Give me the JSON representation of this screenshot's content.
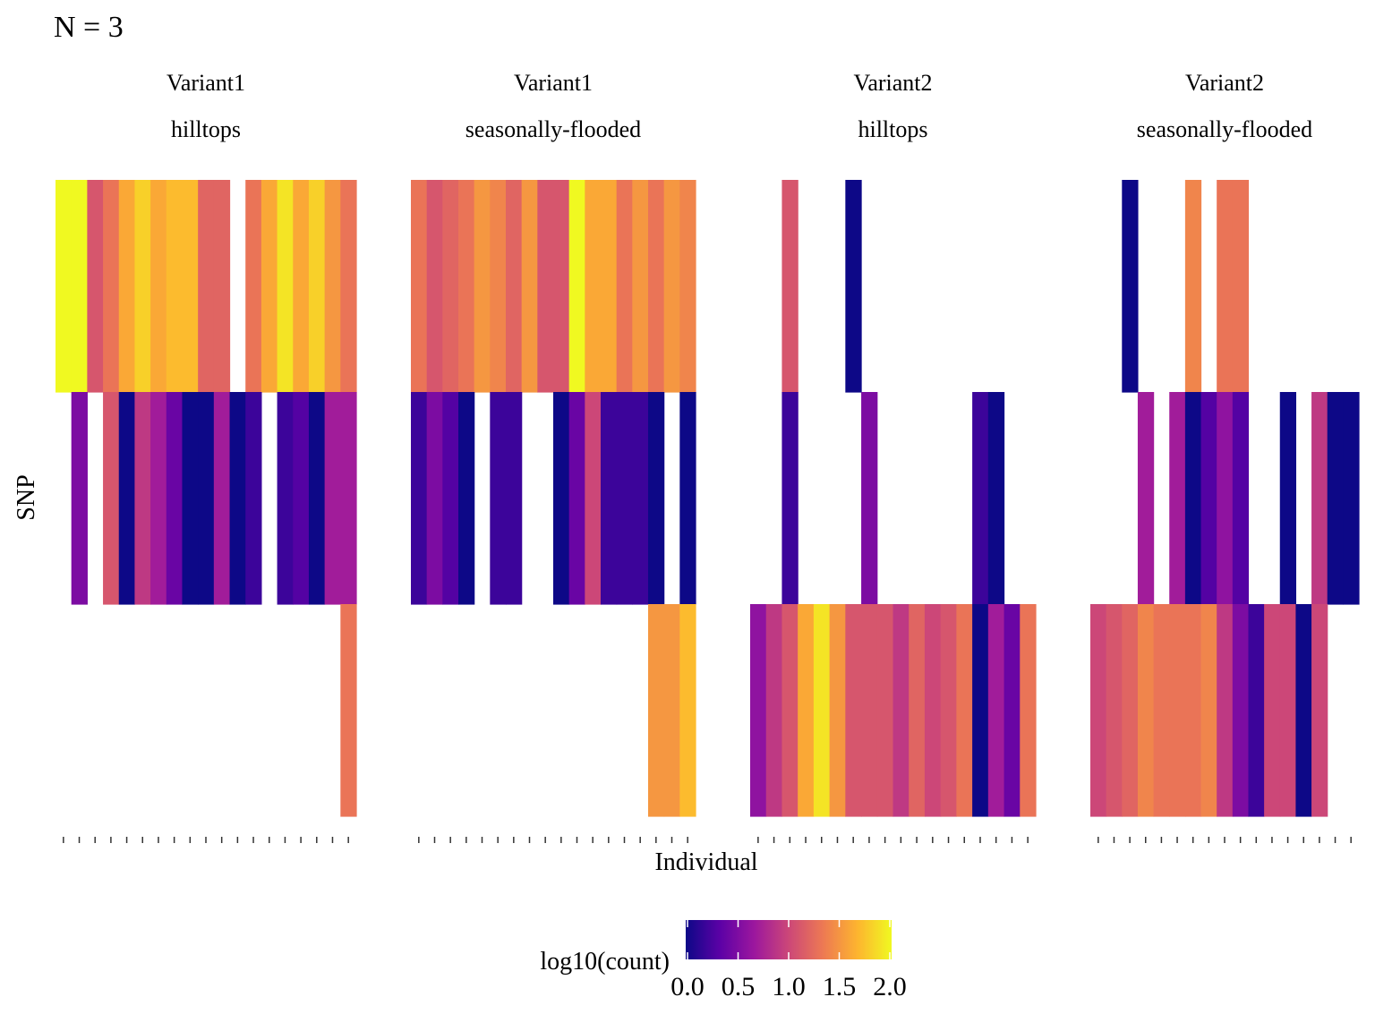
{
  "chart_data": {
    "type": "heatmap",
    "title": "N = 3",
    "xlabel": "Individual",
    "ylabel": "SNP",
    "legend": {
      "title": "log10(count)",
      "ticks": [
        "0.0",
        "0.5",
        "1.0",
        "1.5",
        "2.0"
      ],
      "range": [
        0,
        2
      ],
      "position": "bottom",
      "palette": [
        "#0d0887",
        "#5c01a6",
        "#9c179e",
        "#cc4778",
        "#ed7953",
        "#fdb42f",
        "#f0f921"
      ]
    },
    "panels": [
      {
        "strip": [
          "Variant1",
          "hilltops"
        ],
        "columns": 19,
        "rows": [
          [
            2.0,
            2.0,
            1.1,
            1.3,
            1.6,
            1.8,
            1.6,
            1.7,
            1.7,
            1.2,
            1.2,
            null,
            1.3,
            1.6,
            1.9,
            1.6,
            1.8,
            1.5,
            1.3
          ],
          [
            null,
            0.5,
            null,
            1.1,
            0.0,
            0.9,
            0.7,
            0.4,
            0.0,
            0.0,
            0.7,
            0.0,
            0.2,
            null,
            0.2,
            0.3,
            0.0,
            0.7,
            0.7
          ],
          [
            null,
            null,
            null,
            null,
            null,
            null,
            null,
            null,
            null,
            null,
            null,
            null,
            null,
            null,
            null,
            null,
            null,
            null,
            1.3
          ]
        ]
      },
      {
        "strip": [
          "Variant1",
          "seasonally-flooded"
        ],
        "columns": 18,
        "rows": [
          [
            1.3,
            1.1,
            1.2,
            1.3,
            1.5,
            1.4,
            1.2,
            1.5,
            1.1,
            1.1,
            2.0,
            1.6,
            1.6,
            1.3,
            1.5,
            1.3,
            1.5,
            1.4
          ],
          [
            0.2,
            0.5,
            0.3,
            0.0,
            null,
            0.2,
            0.2,
            null,
            null,
            0.0,
            0.4,
            1.0,
            0.2,
            0.2,
            0.2,
            0.0,
            null,
            0.0
          ],
          [
            null,
            null,
            null,
            null,
            null,
            null,
            null,
            null,
            null,
            null,
            null,
            null,
            null,
            null,
            null,
            1.5,
            1.5,
            1.7
          ]
        ]
      },
      {
        "strip": [
          "Variant2",
          "hilltops"
        ],
        "columns": 18,
        "rows": [
          [
            null,
            null,
            1.1,
            null,
            null,
            null,
            0.0,
            null,
            null,
            null,
            null,
            null,
            null,
            null,
            null,
            null,
            null,
            null
          ],
          [
            null,
            null,
            0.2,
            null,
            null,
            null,
            null,
            0.5,
            null,
            null,
            null,
            null,
            null,
            null,
            0.2,
            0.0,
            null,
            null
          ],
          [
            0.6,
            0.9,
            1.1,
            1.6,
            1.9,
            1.5,
            1.1,
            1.1,
            1.1,
            0.9,
            1.2,
            1.0,
            1.1,
            1.3,
            0.0,
            0.7,
            0.4,
            1.3
          ]
        ]
      },
      {
        "strip": [
          "Variant2",
          "seasonally-flooded"
        ],
        "columns": 17,
        "rows": [
          [
            null,
            null,
            0.0,
            null,
            null,
            null,
            1.4,
            null,
            1.3,
            1.3,
            null,
            null,
            null,
            null,
            null,
            null,
            null
          ],
          [
            null,
            null,
            null,
            0.7,
            null,
            0.7,
            0.0,
            0.3,
            0.6,
            0.3,
            null,
            null,
            0.0,
            null,
            0.9,
            0.0,
            0.0
          ],
          [
            1.0,
            1.1,
            1.2,
            1.4,
            1.3,
            1.3,
            1.3,
            1.4,
            0.9,
            0.5,
            0.2,
            1.0,
            1.0,
            0.0,
            1.0,
            null,
            null
          ]
        ]
      }
    ]
  }
}
